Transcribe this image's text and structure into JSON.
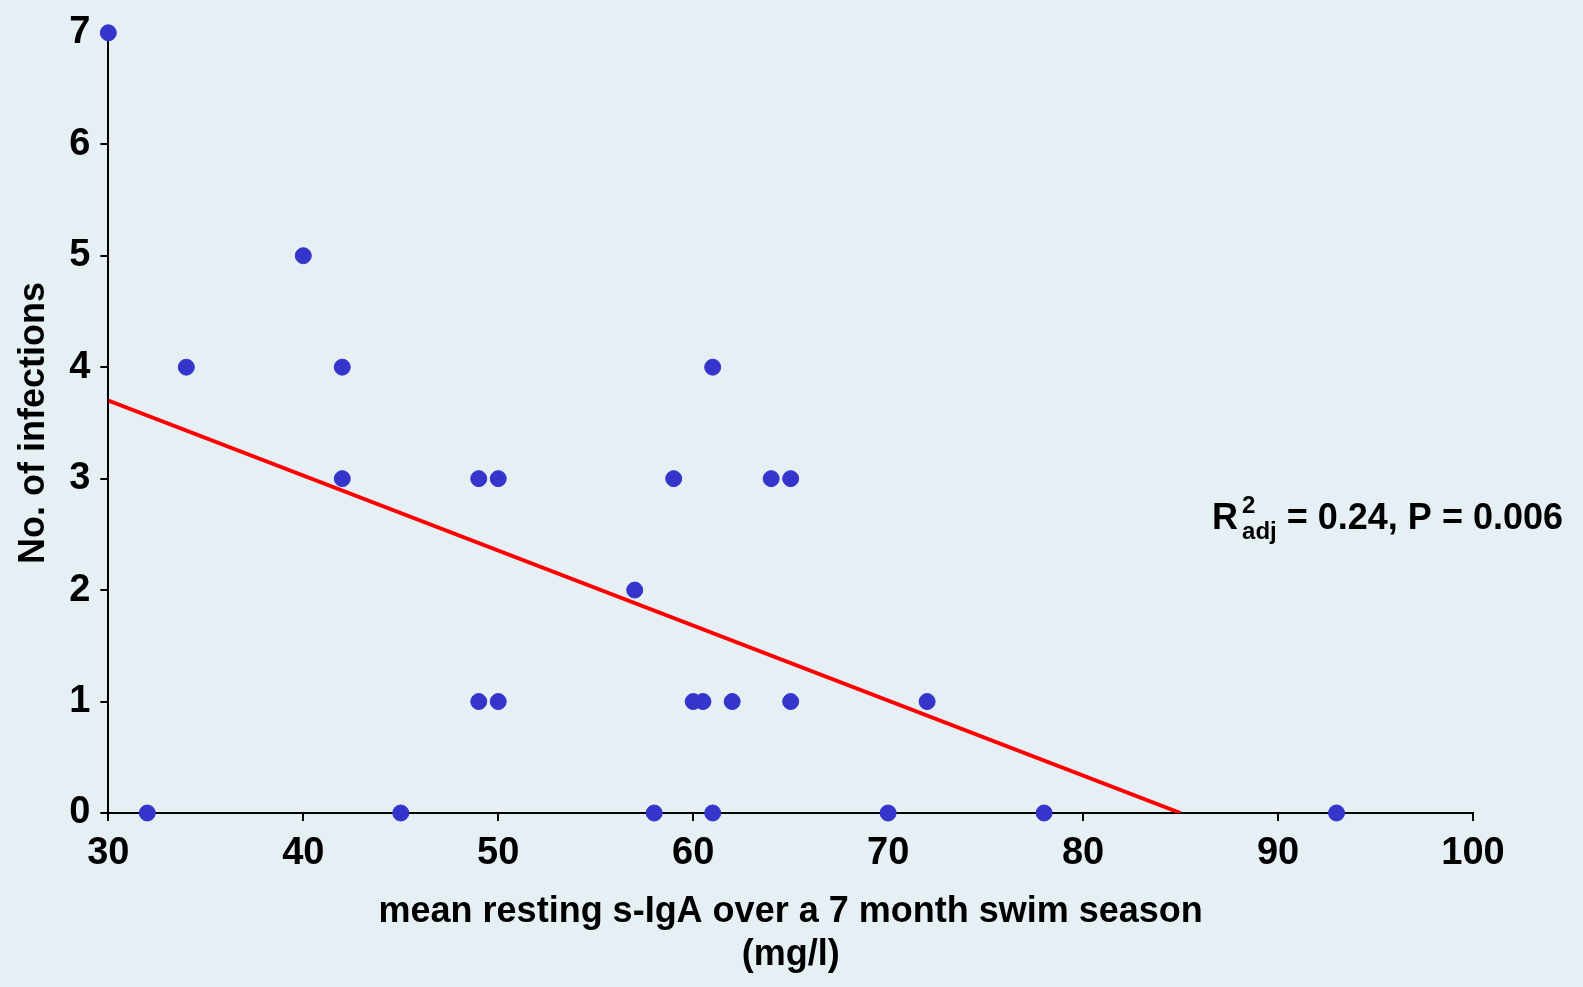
{
  "chart_data": {
    "type": "scatter",
    "x_label": [
      "mean resting s-IgA over a 7 month swim season",
      "(mg/l)"
    ],
    "y_label": "No. of infections",
    "annotation": {
      "base": "R",
      "sup": "2",
      "sub": "adj",
      "rest": " = 0.24, P = 0.006"
    },
    "series": [
      {
        "type": "scatter",
        "marker": "circle",
        "color": "#3535cc",
        "x": [
          30,
          34,
          40,
          42,
          42,
          49,
          50,
          59,
          64,
          65,
          57,
          49,
          50,
          60,
          60.5,
          62,
          65,
          72,
          32,
          45,
          58,
          61,
          70,
          78,
          93,
          61
        ],
        "values": [
          7,
          4,
          5,
          4,
          3,
          3,
          3,
          3,
          3,
          3,
          2,
          1,
          1,
          1,
          1,
          1,
          1,
          1,
          0,
          0,
          0,
          0,
          0,
          0,
          0,
          4
        ]
      },
      {
        "type": "line",
        "line_style": "solid",
        "color": "#ff0000",
        "x": [
          30,
          85
        ],
        "values": [
          3.7,
          0
        ]
      }
    ],
    "xlim": [
      30,
      100
    ],
    "xticks": [
      30,
      40,
      50,
      60,
      70,
      80,
      90,
      100
    ],
    "ylim": [
      0,
      7
    ],
    "yticks": [
      0,
      1,
      2,
      3,
      4,
      5,
      6,
      7
    ],
    "grid": false
  }
}
